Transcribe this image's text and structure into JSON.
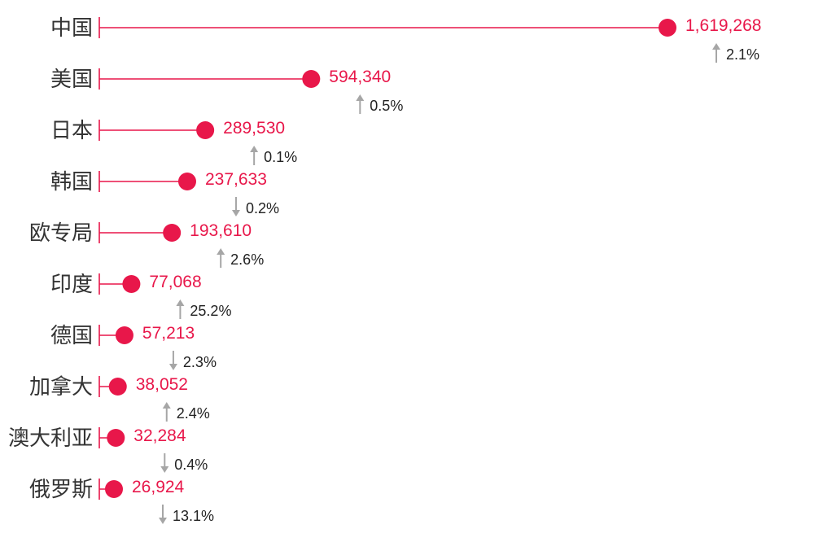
{
  "chart_data": {
    "type": "lollipop",
    "title": "",
    "xlabel": "",
    "ylabel": "",
    "categories": [
      "中国",
      "美国",
      "日本",
      "韩国",
      "欧专局",
      "印度",
      "德国",
      "加拿大",
      "澳大利亚",
      "俄罗斯"
    ],
    "series": [
      {
        "values": [
          1619268,
          594340,
          289530,
          237633,
          193610,
          77068,
          57213,
          38052,
          32284,
          26924
        ],
        "value_labels": [
          "1,619,268",
          "594,340",
          "289,530",
          "237,633",
          "193,610",
          "77,068",
          "57,213",
          "38,052",
          "32,284",
          "26,924"
        ]
      }
    ],
    "changes": [
      {
        "label": "2.1%",
        "direction": "up"
      },
      {
        "label": "0.5%",
        "direction": "up"
      },
      {
        "label": "0.1%",
        "direction": "up"
      },
      {
        "label": "0.2%",
        "direction": "down"
      },
      {
        "label": "2.6%",
        "direction": "up"
      },
      {
        "label": "25.2%",
        "direction": "up"
      },
      {
        "label": "2.3%",
        "direction": "down"
      },
      {
        "label": "2.4%",
        "direction": "up"
      },
      {
        "label": "0.4%",
        "direction": "down"
      },
      {
        "label": "13.1%",
        "direction": "down"
      }
    ],
    "colors": {
      "marker": "#e8174a",
      "stem": "#e8174a",
      "value_text": "#e8174a",
      "arrow": "#a6a6a6",
      "change_text": "#222222",
      "category_text": "#333333"
    },
    "grid": false,
    "legend": "none"
  }
}
